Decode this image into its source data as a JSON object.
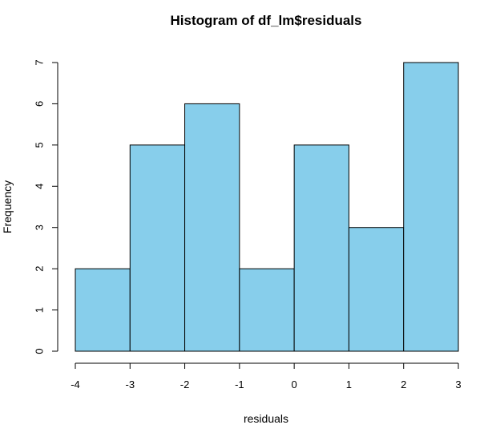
{
  "chart_data": {
    "type": "bar",
    "title": "Histogram of df_lm$residuals",
    "xlabel": "residuals",
    "ylabel": "Frequency",
    "bins": [
      {
        "x0": -4,
        "x1": -3,
        "count": 2
      },
      {
        "x0": -3,
        "x1": -2,
        "count": 5
      },
      {
        "x0": -2,
        "x1": -1,
        "count": 6
      },
      {
        "x0": -1,
        "x1": 0,
        "count": 2
      },
      {
        "x0": 0,
        "x1": 1,
        "count": 5
      },
      {
        "x0": 1,
        "x1": 2,
        "count": 3
      },
      {
        "x0": 2,
        "x1": 3,
        "count": 7
      }
    ],
    "xlim": [
      -4,
      3
    ],
    "ylim": [
      0,
      7
    ],
    "x_ticks": [
      -4,
      -3,
      -2,
      -1,
      0,
      1,
      2,
      3
    ],
    "y_ticks": [
      0,
      1,
      2,
      3,
      4,
      5,
      6,
      7
    ],
    "bar_color": "#87CEEB",
    "edge_color": "#000000",
    "grid": false,
    "legend": "none"
  }
}
